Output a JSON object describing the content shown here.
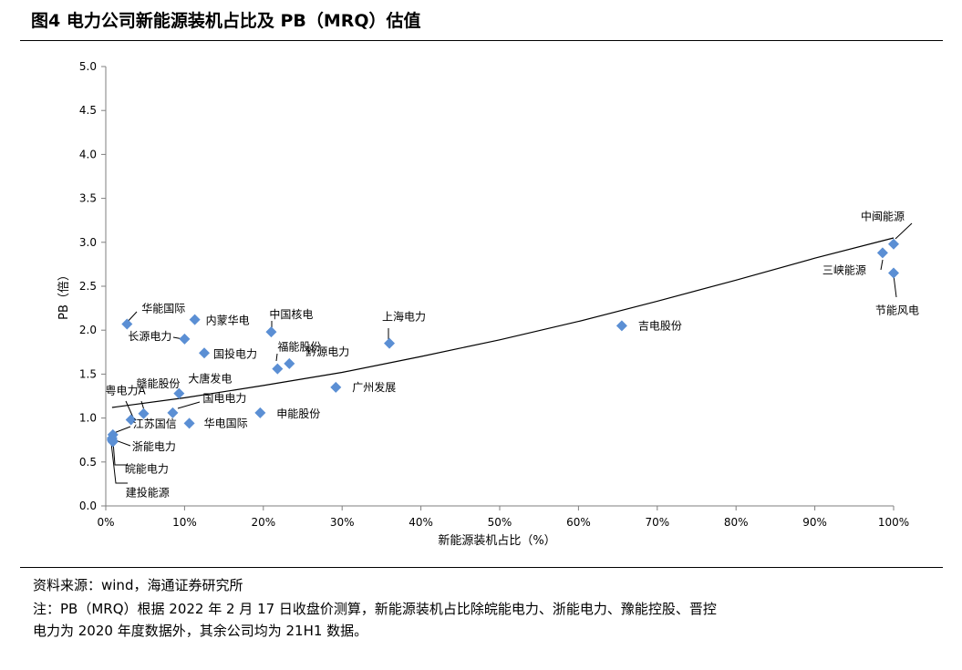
{
  "title": "图4  电力公司新能源装机占比及 PB（MRQ）估值",
  "source": "资料来源：wind，海通证券研究所",
  "note_line1": "注：PB（MRQ）根据 2022 年 2 月 17 日收盘价测算，新能源装机占比除皖能电力、浙能电力、豫能控股、晋控",
  "note_line2": "电力为 2020 年度数据外，其余公司均为 21H1 数据。",
  "chart_data": {
    "type": "scatter",
    "xlabel": "新能源装机占比（%）",
    "ylabel": "PB（倍）",
    "xlim": [
      0,
      100
    ],
    "ylim": [
      0,
      5
    ],
    "x_ticks": [
      "0%",
      "10%",
      "20%",
      "30%",
      "40%",
      "50%",
      "60%",
      "70%",
      "80%",
      "90%",
      "100%"
    ],
    "y_ticks": [
      "0.0",
      "0.5",
      "1.0",
      "1.5",
      "2.0",
      "2.5",
      "3.0",
      "3.5",
      "4.0",
      "4.5",
      "5.0"
    ],
    "grid": false,
    "trendline": "polynomial",
    "color": "#5b8fd4",
    "points": [
      {
        "name": "中闽能源",
        "x": 100,
        "y": 2.98
      },
      {
        "name": "三峡能源",
        "x": 98.6,
        "y": 2.88
      },
      {
        "name": "节能风电",
        "x": 100,
        "y": 2.65
      },
      {
        "name": "吉电股份",
        "x": 65.5,
        "y": 2.05
      },
      {
        "name": "上海电力",
        "x": 36,
        "y": 1.85
      },
      {
        "name": "中国核电",
        "x": 21,
        "y": 1.98
      },
      {
        "name": "福能股份",
        "x": 21.8,
        "y": 1.56
      },
      {
        "name": "黔源电力",
        "x": 23.3,
        "y": 1.62
      },
      {
        "name": "广州发展",
        "x": 29.2,
        "y": 1.35
      },
      {
        "name": "华能国际",
        "x": 2.7,
        "y": 2.07
      },
      {
        "name": "内蒙华电",
        "x": 11.3,
        "y": 2.12
      },
      {
        "name": "长源电力",
        "x": 10,
        "y": 1.9
      },
      {
        "name": "国投电力",
        "x": 12.5,
        "y": 1.74
      },
      {
        "name": "大唐发电",
        "x": 9.3,
        "y": 1.28
      },
      {
        "name": "赣能股份",
        "x": 4.8,
        "y": 1.05
      },
      {
        "name": "粤电力A",
        "x": 3.2,
        "y": 0.98
      },
      {
        "name": "国电电力",
        "x": 8.5,
        "y": 1.06
      },
      {
        "name": "华电国际",
        "x": 10.6,
        "y": 0.94
      },
      {
        "name": "申能股份",
        "x": 19.6,
        "y": 1.06
      },
      {
        "name": "江苏国信",
        "x": 0.9,
        "y": 0.81
      },
      {
        "name": "浙能电力",
        "x": 0.8,
        "y": 0.77
      },
      {
        "name": "皖能电力",
        "x": 0.8,
        "y": 0.75
      },
      {
        "name": "建投能源",
        "x": 0.9,
        "y": 0.73
      }
    ],
    "trend": [
      {
        "x": 0.8,
        "y": 1.12
      },
      {
        "x": 10,
        "y": 1.23
      },
      {
        "x": 20,
        "y": 1.37
      },
      {
        "x": 30,
        "y": 1.52
      },
      {
        "x": 40,
        "y": 1.7
      },
      {
        "x": 50,
        "y": 1.89
      },
      {
        "x": 60,
        "y": 2.1
      },
      {
        "x": 70,
        "y": 2.33
      },
      {
        "x": 80,
        "y": 2.57
      },
      {
        "x": 90,
        "y": 2.82
      },
      {
        "x": 100,
        "y": 3.05
      }
    ]
  }
}
